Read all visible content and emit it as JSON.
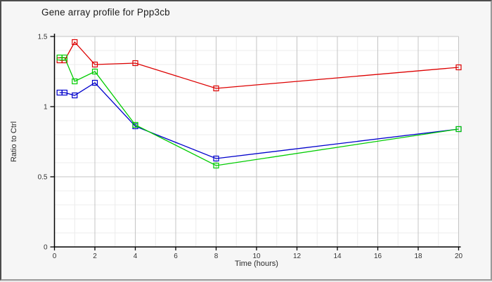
{
  "chart_data": {
    "type": "line",
    "title": "Gene array profile for Ppp3cb",
    "xlabel": "Time (hours)",
    "ylabel": "Ratio to Ctrl",
    "x": [
      0.25,
      0.5,
      1,
      2,
      4,
      8,
      20
    ],
    "series": [
      {
        "name": "red-series",
        "color": "#dd0000",
        "values": [
          1.33,
          1.33,
          1.46,
          1.3,
          1.31,
          1.13,
          1.28
        ]
      },
      {
        "name": "blue-series",
        "color": "#0000cc",
        "values": [
          1.1,
          1.1,
          1.08,
          1.17,
          0.86,
          0.63,
          0.84
        ]
      },
      {
        "name": "green-series",
        "color": "#00cc00",
        "values": [
          1.35,
          1.35,
          1.18,
          1.25,
          0.87,
          0.58,
          0.84
        ]
      }
    ],
    "xlim": [
      0,
      20
    ],
    "ylim": [
      0,
      1.5
    ],
    "x_ticks": [
      0,
      2,
      4,
      6,
      8,
      10,
      12,
      14,
      16,
      18,
      20
    ],
    "x_tick_labels": [
      "0",
      "2",
      "4",
      "6",
      "8",
      "10",
      "12",
      "14",
      "16",
      "18",
      "20"
    ],
    "y_ticks": [
      0,
      0.5,
      1,
      1.5
    ],
    "y_tick_labels": [
      "0",
      "0.5",
      "1",
      "1.5"
    ],
    "x_minor_step": 1,
    "y_minor_step": 0.1,
    "grid": "on",
    "legend": "none",
    "marker": "open-square",
    "colors": {
      "figure_bg": "#f6f6f6",
      "plot_bg": "#ffffff",
      "grid_minor": "#ececec",
      "grid_major": "#c4c4c4",
      "axis": "#000000",
      "tick_text": "#333333",
      "title_text": "#1c1c1c"
    }
  }
}
